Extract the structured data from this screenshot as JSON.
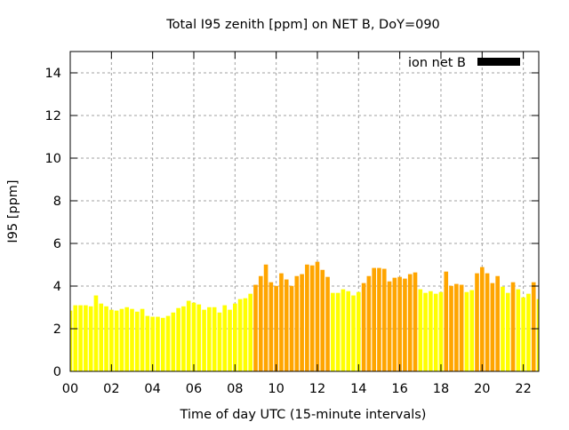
{
  "chart_data": {
    "type": "bar",
    "title": "Total I95 zenith [ppm] on NET B, DoY=090",
    "xlabel": "Time of day UTC (15-minute intervals)",
    "ylabel": "I95 [ppm]",
    "xlim": [
      0,
      22.75
    ],
    "ylim": [
      0,
      15
    ],
    "xticks": [
      "00",
      "02",
      "04",
      "06",
      "08",
      "10",
      "12",
      "14",
      "16",
      "18",
      "20",
      "22"
    ],
    "yticks": [
      "0",
      "2",
      "4",
      "6",
      "8",
      "10",
      "12",
      "14"
    ],
    "grid": true,
    "legend": {
      "label": "ion net B",
      "placement": "top-right",
      "color": "#000000"
    },
    "bar_interval_hours": 0.25,
    "threshold": 4.0,
    "colors": {
      "below": "#ffff00",
      "above": "#ffa500"
    },
    "values": [
      2.85,
      3.1,
      3.1,
      3.1,
      3.05,
      3.56,
      3.18,
      3.05,
      2.89,
      2.85,
      2.93,
      3.01,
      2.93,
      2.8,
      2.93,
      2.6,
      2.56,
      2.56,
      2.51,
      2.6,
      2.76,
      2.97,
      3.05,
      3.31,
      3.22,
      3.14,
      2.89,
      3.01,
      3.01,
      2.76,
      3.1,
      2.89,
      3.18,
      3.39,
      3.43,
      3.64,
      4.06,
      4.47,
      5.01,
      4.18,
      4.01,
      4.6,
      4.31,
      4.01,
      4.47,
      4.56,
      5.01,
      4.97,
      5.14,
      4.76,
      4.43,
      3.68,
      3.68,
      3.85,
      3.76,
      3.56,
      3.72,
      4.14,
      4.47,
      4.85,
      4.85,
      4.81,
      4.22,
      4.39,
      4.43,
      4.35,
      4.56,
      4.64,
      3.85,
      3.68,
      3.76,
      3.64,
      3.72,
      4.68,
      4.01,
      4.1,
      4.06,
      3.72,
      3.81,
      4.6,
      4.89,
      4.6,
      4.14,
      4.47,
      3.97,
      3.68,
      4.18,
      3.85,
      3.47,
      3.64,
      4.18,
      3.39
    ]
  }
}
